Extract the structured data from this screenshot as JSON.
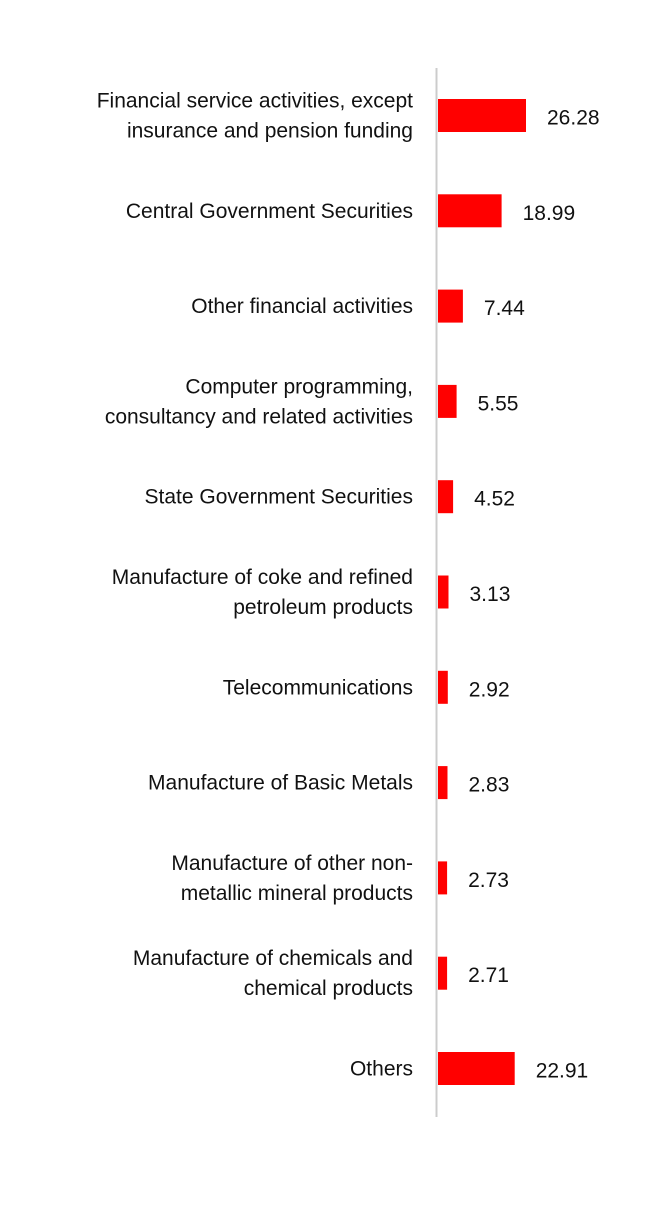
{
  "chart_data": {
    "type": "bar",
    "orientation": "horizontal",
    "title": "",
    "xlabel": "",
    "ylabel": "",
    "grid": false,
    "legend": "none",
    "bar_color": "#ff0000",
    "axis_color": "#cccccc",
    "categories": [
      [
        "Financial service activities, except",
        "insurance and pension funding"
      ],
      [
        "Central Government Securities"
      ],
      [
        "Other financial activities"
      ],
      [
        "Computer programming,",
        "consultancy and related activities"
      ],
      [
        "State Government Securities"
      ],
      [
        "Manufacture of coke and refined",
        "petroleum products"
      ],
      [
        "Telecommunications"
      ],
      [
        "Manufacture of Basic Metals"
      ],
      [
        "Manufacture of other non-",
        "metallic mineral products"
      ],
      [
        "Manufacture of chemicals and",
        "chemical products"
      ],
      [
        "Others"
      ]
    ],
    "values": [
      26.28,
      18.99,
      7.44,
      5.55,
      4.52,
      3.13,
      2.92,
      2.83,
      2.73,
      2.71,
      22.91
    ],
    "value_labels": [
      "26.28",
      "18.99",
      "7.44",
      "5.55",
      "4.52",
      "3.13",
      "2.92",
      "2.83",
      "2.73",
      "2.71",
      "22.91"
    ],
    "xlim": [
      0,
      30
    ]
  }
}
